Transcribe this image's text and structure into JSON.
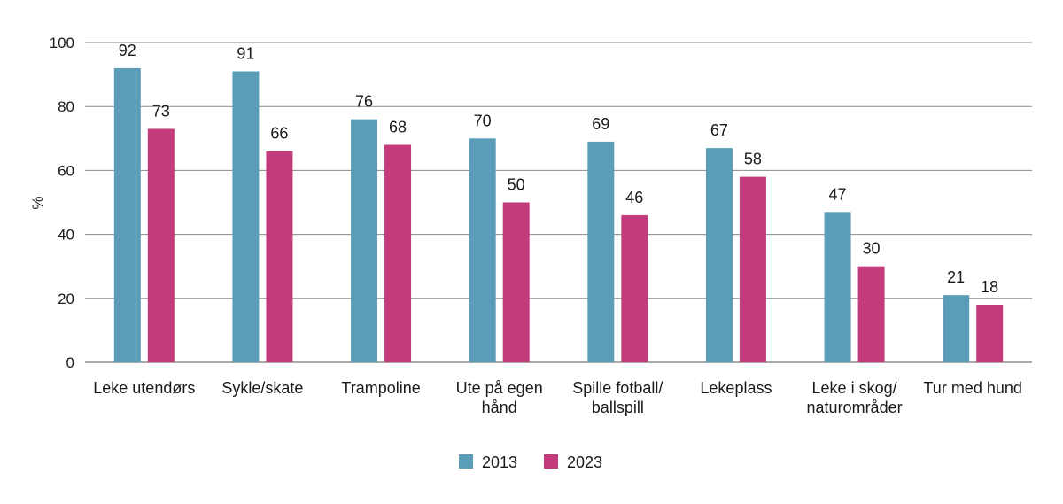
{
  "chart_data": {
    "type": "bar",
    "categories": [
      [
        "Leke utendørs"
      ],
      [
        "Sykle/skate"
      ],
      [
        "Trampoline"
      ],
      [
        "Ute på egen",
        "hånd"
      ],
      [
        "Spille fotball/",
        "ballspill"
      ],
      [
        "Lekeplass"
      ],
      [
        "Leke i skog/",
        "naturområder"
      ],
      [
        "Tur med hund"
      ]
    ],
    "series": [
      {
        "name": "2013",
        "color": "#5b9db8",
        "values": [
          92,
          91,
          76,
          70,
          69,
          67,
          47,
          21
        ]
      },
      {
        "name": "2023",
        "color": "#c43b7c",
        "values": [
          73,
          66,
          68,
          50,
          46,
          58,
          30,
          18
        ]
      }
    ],
    "ylabel": "%",
    "ylim": [
      0,
      100
    ],
    "yticks": [
      0,
      20,
      40,
      60,
      80,
      100
    ],
    "grid": true,
    "legend_position": "bottom-center"
  }
}
